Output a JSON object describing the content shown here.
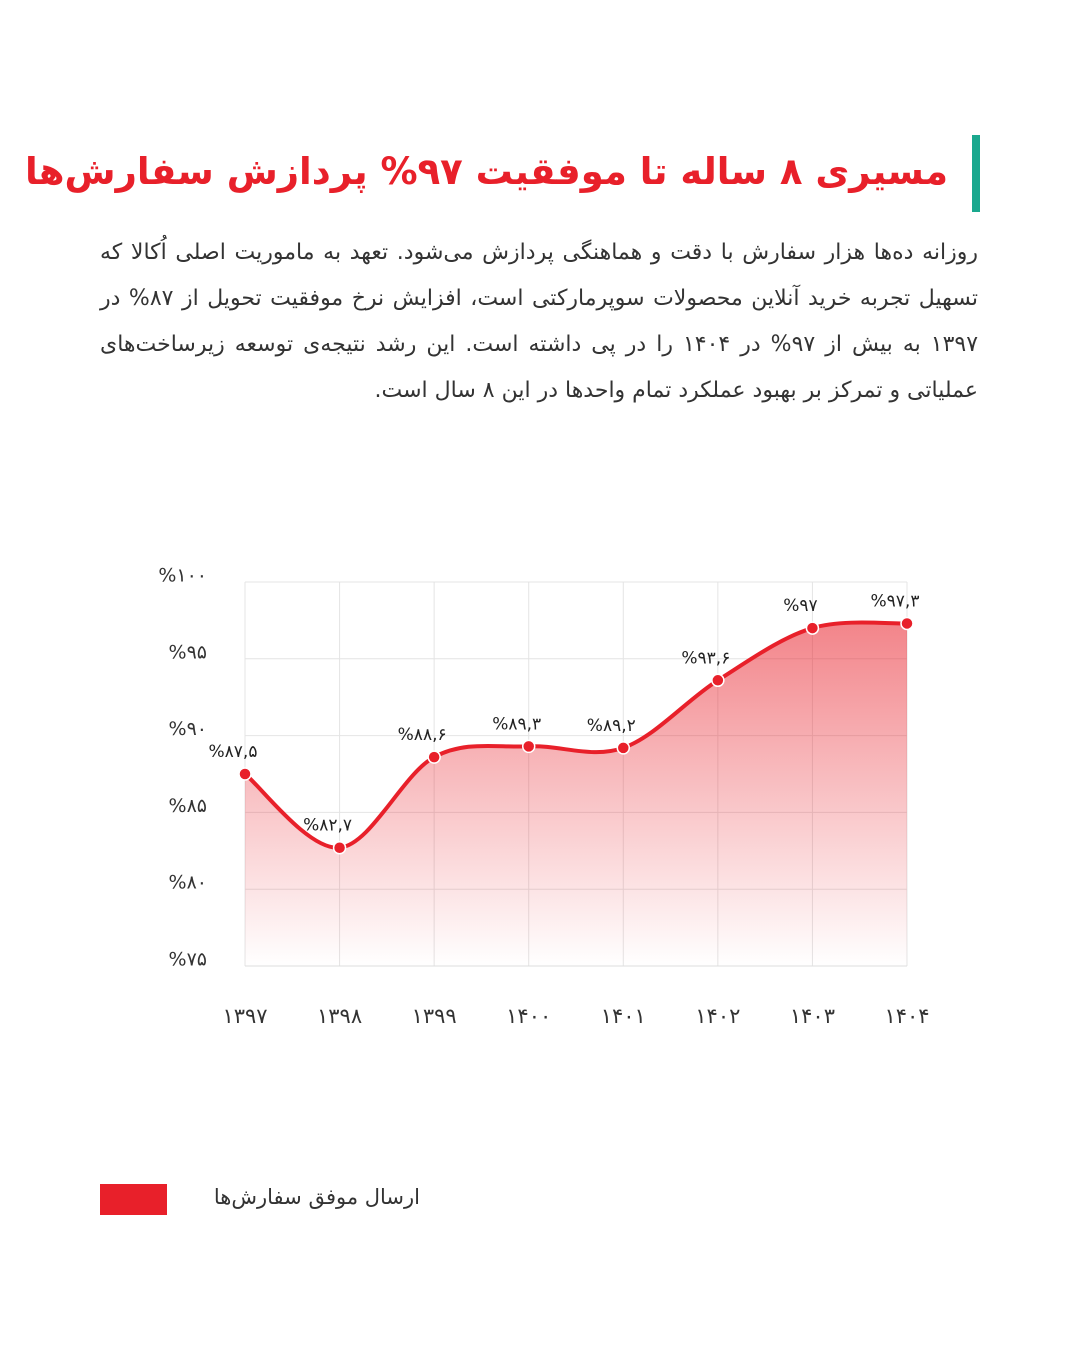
{
  "title": "مسیری ۸ ساله تا موفقیت ۹۷% پردازش سفارش‌ها",
  "paragraph": "روزانه ده‌ها هزار سفارش با دقت و هماهنگی پردازش می‌شود. تعهد به ماموریت اصلی اُکالا که تسهیل تجربه خرید آنلاین محصولات سوپرمارکتی است، افزایش نرخ موفقیت تحویل از ۸۷% در ۱۳۹۷ به بیش از ۹۷% در ۱۴۰۴ را در پی داشته است.  این رشد نتیجه‌ی توسعه زیرساخت‌های عملیاتی و تمرکز بر بهبود عملکرد تمام واحدها در این ۸ سال است.",
  "chart_data": {
    "type": "line",
    "categories": [
      "۱۳۹۷",
      "۱۳۹۸",
      "۱۳۹۹",
      "۱۴۰۰",
      "۱۴۰۱",
      "۱۴۰۲",
      "۱۴۰۳",
      "۱۴۰۴"
    ],
    "series": [
      {
        "name": "ارسال موفق سفارش‌ها",
        "color": "#e8202a",
        "values": [
          87.5,
          82.7,
          88.6,
          89.3,
          89.2,
          93.6,
          97,
          97.3
        ],
        "value_labels": [
          "%۸۷,۵",
          "%۸۲,۷",
          "%۸۸,۶",
          "%۸۹,۳",
          "%۸۹,۲",
          "%۹۳,۶",
          "%۹۷",
          "%۹۷,۳"
        ]
      }
    ],
    "ylim": [
      75,
      100
    ],
    "yticks": [
      {
        "value": 75,
        "label": "%۷۵"
      },
      {
        "value": 80,
        "label": "%۸۰"
      },
      {
        "value": 85,
        "label": "%۸۵"
      },
      {
        "value": 90,
        "label": "%۹۰"
      },
      {
        "value": 95,
        "label": "%۹۵"
      },
      {
        "value": 100,
        "label": "%۱۰۰"
      }
    ],
    "grid": true,
    "area": true
  }
}
